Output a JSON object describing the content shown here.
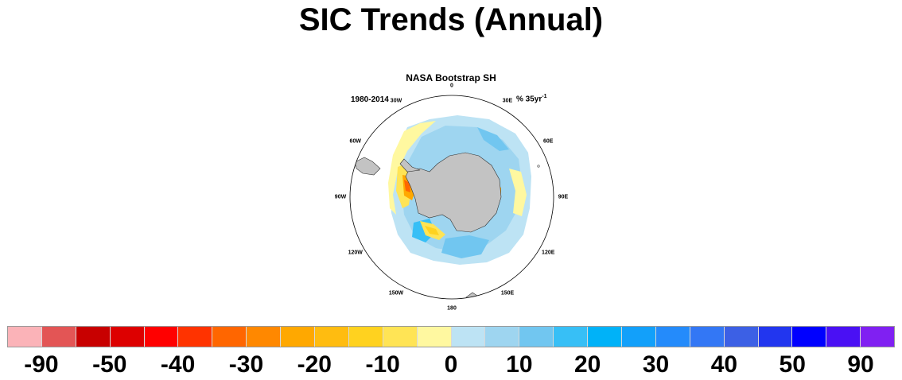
{
  "title": "SIC Trends (Annual)",
  "map": {
    "subtitle": "NASA Bootstrap SH",
    "period": "1980-2014",
    "units_base": "% 35yr",
    "units_exp": "-1",
    "projection": "south-polar-stereographic",
    "longitude_labels": [
      "0",
      "30E",
      "60E",
      "90E",
      "120E",
      "150E",
      "180",
      "150W",
      "120W",
      "90W",
      "60W",
      "30W"
    ],
    "land_color": "#c3c3c3"
  },
  "colorbar": {
    "colors": [
      "#fbb3b8",
      "#e35555",
      "#c80000",
      "#dd0000",
      "#ff0000",
      "#ff3300",
      "#ff6600",
      "#ff8800",
      "#ffa800",
      "#ffbc10",
      "#ffd21f",
      "#ffe455",
      "#fff8a0",
      "#bde3f4",
      "#9ed5f0",
      "#71c6f0",
      "#37bff6",
      "#00b2f8",
      "#12a0fa",
      "#248bfb",
      "#3377f5",
      "#3c60e5",
      "#2236ef",
      "#0000ff",
      "#4a10f4",
      "#8020f2"
    ],
    "labels": [
      "-90",
      "-50",
      "-40",
      "-30",
      "-20",
      "-10",
      "0",
      "10",
      "20",
      "30",
      "40",
      "50",
      "90"
    ]
  }
}
